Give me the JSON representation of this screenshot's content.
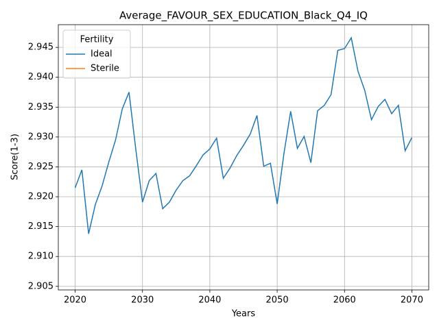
{
  "chart_data": {
    "type": "line",
    "title": "Average_FAVOUR_SEX_EDUCATION_Black_Q4_IQ",
    "x_label": "Years",
    "y_label": "Score(1-3)",
    "legend_title": "Fertility",
    "legend_position": "upper left",
    "grid": true,
    "x": [
      2020,
      2021,
      2022,
      2023,
      2024,
      2025,
      2026,
      2027,
      2028,
      2029,
      2030,
      2031,
      2032,
      2033,
      2034,
      2035,
      2036,
      2037,
      2038,
      2039,
      2040,
      2041,
      2042,
      2043,
      2044,
      2045,
      2046,
      2047,
      2048,
      2049,
      2050,
      2051,
      2052,
      2053,
      2054,
      2055,
      2056,
      2057,
      2058,
      2059,
      2060,
      2061,
      2062,
      2063,
      2064,
      2065,
      2066,
      2067,
      2068,
      2069,
      2070
    ],
    "series": [
      {
        "name": "Ideal",
        "color": "#1f77b4",
        "values": [
          2.9215,
          2.9245,
          2.9138,
          2.9187,
          2.9218,
          2.9258,
          2.9295,
          2.9347,
          2.9375,
          2.928,
          2.9191,
          2.9227,
          2.9239,
          2.918,
          2.9191,
          2.9211,
          2.9227,
          2.9235,
          2.9252,
          2.927,
          2.928,
          2.9298,
          2.9231,
          2.9248,
          2.9269,
          2.9286,
          2.9305,
          2.9336,
          2.9251,
          2.9256,
          2.9188,
          2.9272,
          2.9343,
          2.9281,
          2.9301,
          2.9257,
          2.9344,
          2.9353,
          2.9371,
          2.9445,
          2.9448,
          2.9466,
          2.941,
          2.9378,
          2.9329,
          2.9351,
          2.9363,
          2.9339,
          2.9353,
          2.9277,
          2.9299
        ]
      },
      {
        "name": "Sterile",
        "color": "#ff7f0e",
        "values": [
          null,
          null,
          null,
          null,
          null,
          null,
          null,
          null,
          null,
          null,
          null,
          null,
          null,
          null,
          null,
          null,
          null,
          null,
          null,
          null,
          null,
          null,
          null,
          null,
          null,
          null,
          null,
          null,
          null,
          null,
          null,
          null,
          null,
          null,
          null,
          null,
          null,
          null,
          null,
          null,
          null,
          null,
          null,
          null,
          null,
          null,
          null,
          null,
          null,
          null,
          null
        ]
      }
    ],
    "xlim": [
      2017.5,
      2072.5
    ],
    "xticks": [
      2020,
      2030,
      2040,
      2050,
      2060,
      2070
    ],
    "ylim": [
      2.9044,
      2.9488
    ],
    "yticks": [
      2.905,
      {
        "value": 2.91,
        "label": "2.910"
      },
      2.915,
      {
        "value": 2.92,
        "label": "2.920"
      },
      2.925,
      {
        "value": 2.93,
        "label": "2.930"
      },
      2.935,
      {
        "value": 2.94,
        "label": "2.940"
      },
      2.945
    ]
  }
}
